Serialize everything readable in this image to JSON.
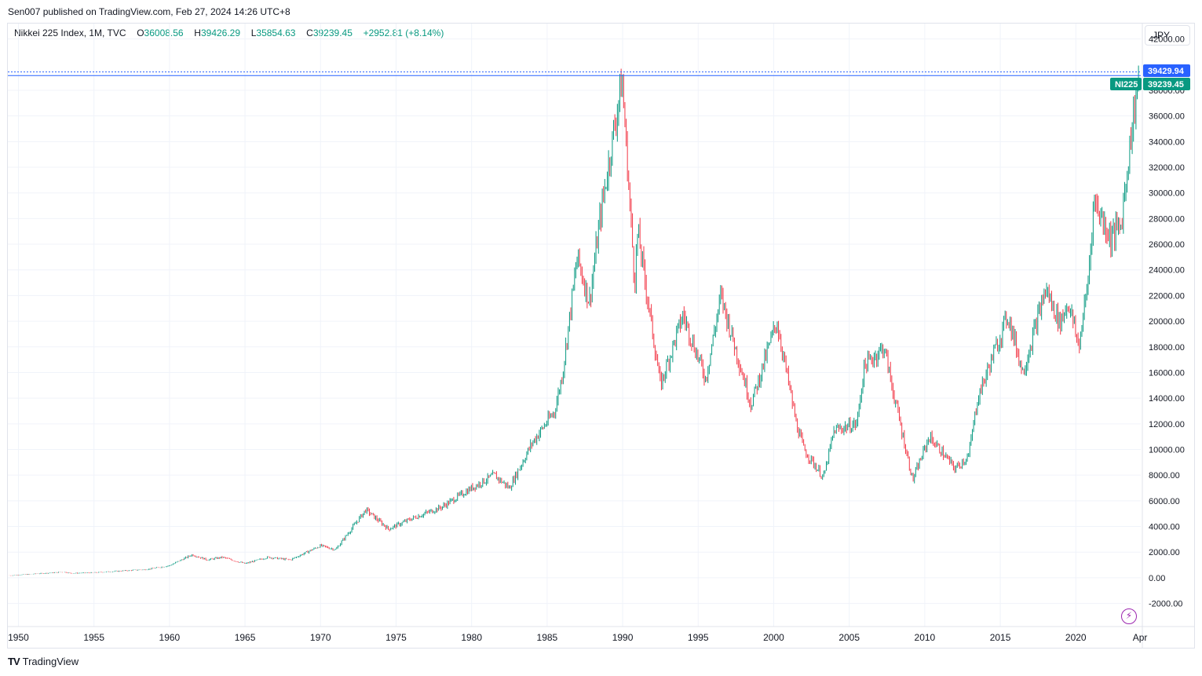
{
  "header": {
    "publisher": "Sen007 published on TradingView.com, Feb 27, 2024 14:26 UTC+8"
  },
  "legend": {
    "symbol": "Nikkei 225 Index, 1M, TVC",
    "open_label": "O",
    "open": "36008.56",
    "high_label": "H",
    "high": "39426.29",
    "low_label": "L",
    "low": "35854.63",
    "close_label": "C",
    "close": "39239.45",
    "change": "+2952.81 (+8.14%)"
  },
  "currency_button": "JPY",
  "price_tags": {
    "high_value": "39429.94",
    "symbol_tag": "NI225",
    "last_value": "39239.45"
  },
  "footer": {
    "brand": "TradingView",
    "logo_glyph": "TV"
  },
  "colors": {
    "up": "#089981",
    "down": "#f23645",
    "high_line": "#2962ff",
    "last_tag": "#089981",
    "grid": "#f0f3fa",
    "text": "#131722"
  },
  "chart_data": {
    "type": "candlestick",
    "title": "Nikkei 225 Index, 1M, TVC",
    "timeframe": "1M",
    "currency": "JPY",
    "x_range": [
      1949.3,
      2024.3
    ],
    "ylim": [
      -3800,
      43200
    ],
    "y_ticks": [
      -2000,
      0,
      2000,
      4000,
      6000,
      8000,
      10000,
      12000,
      14000,
      16000,
      18000,
      20000,
      22000,
      24000,
      26000,
      28000,
      30000,
      32000,
      34000,
      36000,
      38000,
      42000
    ],
    "y_tick_labels": [
      "-2000.00",
      "0.00",
      "2000.00",
      "4000.00",
      "6000.00",
      "8000.00",
      "10000.00",
      "12000.00",
      "14000.00",
      "16000.00",
      "18000.00",
      "20000.00",
      "22000.00",
      "24000.00",
      "26000.00",
      "28000.00",
      "30000.00",
      "32000.00",
      "34000.00",
      "36000.00",
      "38000.00",
      "42000.00"
    ],
    "x_ticks": [
      1950,
      1955,
      1960,
      1965,
      1970,
      1975,
      1980,
      1985,
      1990,
      1995,
      2000,
      2005,
      2010,
      2015,
      2020,
      2024.25
    ],
    "x_tick_labels": [
      "1950",
      "1955",
      "1960",
      "1965",
      "1970",
      "1975",
      "1980",
      "1985",
      "1990",
      "1995",
      "2000",
      "2005",
      "2010",
      "2015",
      "2020",
      "Apr"
    ],
    "all_time_high": 39429.94,
    "last_close": 39239.45,
    "price_path": [
      [
        1949.4,
        176
      ],
      [
        1953.0,
        450
      ],
      [
        1953.5,
        350
      ],
      [
        1955.0,
        400
      ],
      [
        1957.0,
        550
      ],
      [
        1958.5,
        650
      ],
      [
        1960.0,
        950
      ],
      [
        1961.5,
        1800
      ],
      [
        1962.5,
        1400
      ],
      [
        1963.5,
        1600
      ],
      [
        1965.0,
        1100
      ],
      [
        1966.5,
        1600
      ],
      [
        1968.0,
        1400
      ],
      [
        1970.0,
        2500
      ],
      [
        1971.0,
        2200
      ],
      [
        1973.0,
        5300
      ],
      [
        1974.5,
        3800
      ],
      [
        1976.0,
        4600
      ],
      [
        1978.0,
        5500
      ],
      [
        1980.0,
        7000
      ],
      [
        1981.5,
        8000
      ],
      [
        1982.5,
        7000
      ],
      [
        1984.0,
        10500
      ],
      [
        1985.5,
        13000
      ],
      [
        1986.0,
        15800
      ],
      [
        1987.0,
        25000
      ],
      [
        1987.8,
        21500
      ],
      [
        1988.5,
        28000
      ],
      [
        1989.96,
        38900
      ],
      [
        1990.8,
        23000
      ],
      [
        1991.0,
        27000
      ],
      [
        1992.5,
        15000
      ],
      [
        1994.0,
        20500
      ],
      [
        1995.5,
        15500
      ],
      [
        1996.5,
        22000
      ],
      [
        1998.5,
        13500
      ],
      [
        2000.2,
        20000
      ],
      [
        2001.5,
        12000
      ],
      [
        2002.0,
        10000
      ],
      [
        2003.3,
        7800
      ],
      [
        2004.0,
        11500
      ],
      [
        2005.5,
        12000
      ],
      [
        2006.0,
        16500
      ],
      [
        2007.3,
        18000
      ],
      [
        2008.0,
        14000
      ],
      [
        2009.2,
        7600
      ],
      [
        2010.3,
        11000
      ],
      [
        2011.0,
        10000
      ],
      [
        2012.0,
        8500
      ],
      [
        2012.9,
        9500
      ],
      [
        2013.5,
        14000
      ],
      [
        2015.5,
        20500
      ],
      [
        2016.5,
        16000
      ],
      [
        2018.0,
        22500
      ],
      [
        2018.9,
        20000
      ],
      [
        2019.0,
        20000
      ],
      [
        2019.5,
        21500
      ],
      [
        2020.2,
        18000
      ],
      [
        2020.8,
        23000
      ],
      [
        2021.2,
        29500
      ],
      [
        2022.3,
        26500
      ],
      [
        2023.0,
        27500
      ],
      [
        2023.5,
        33000
      ],
      [
        2024.15,
        39200
      ]
    ]
  }
}
